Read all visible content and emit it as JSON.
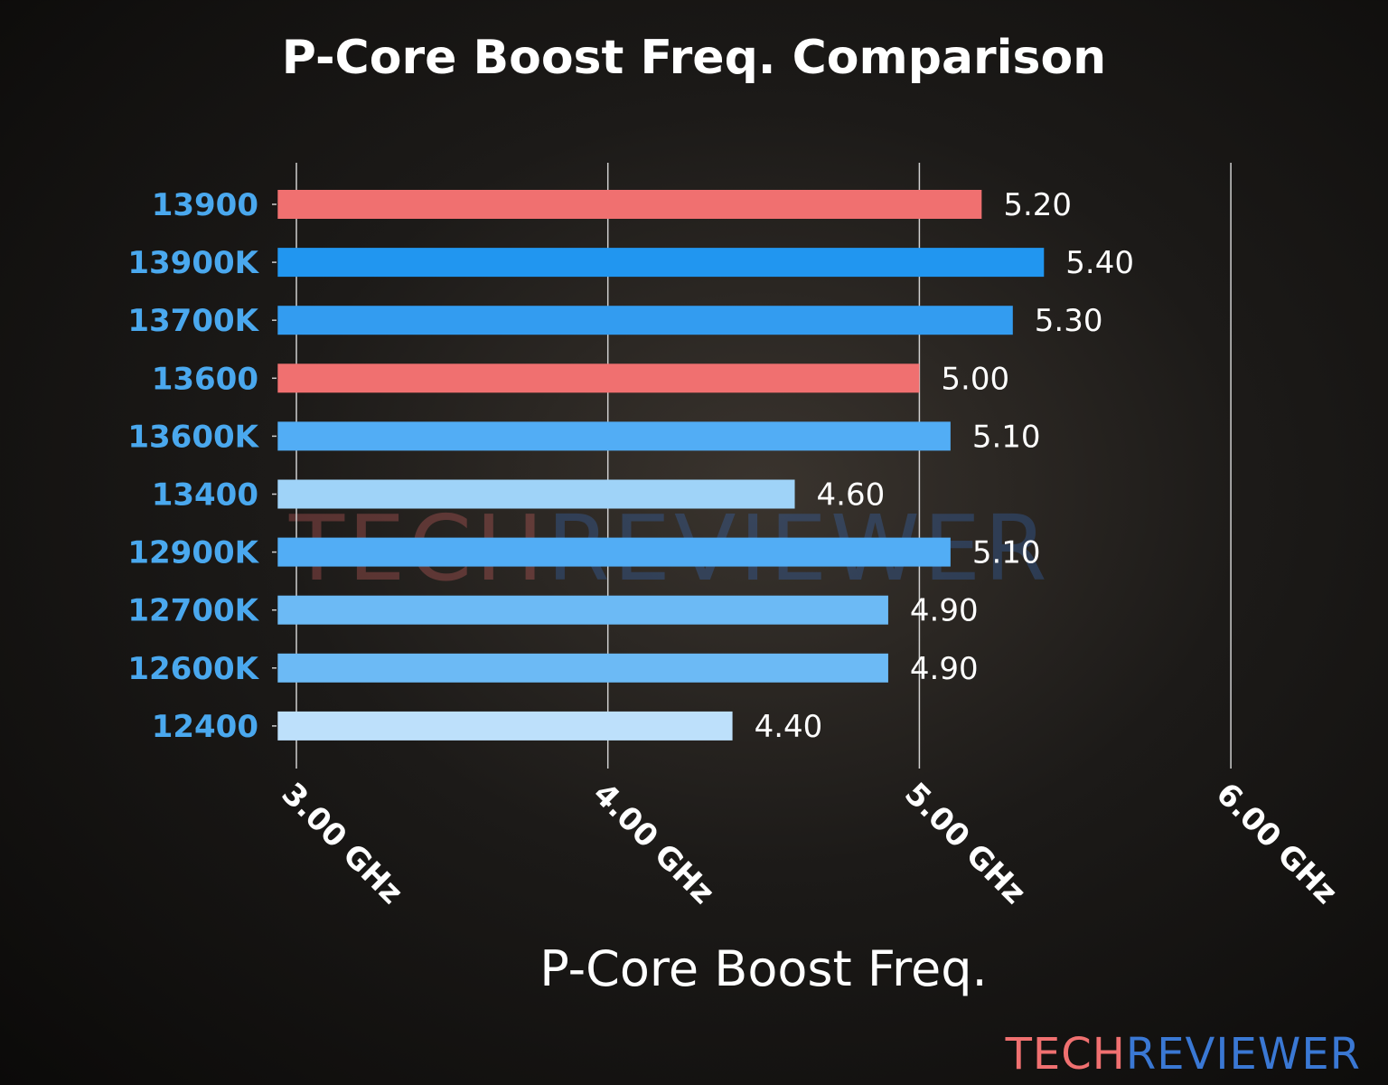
{
  "chart_data": {
    "type": "bar",
    "orientation": "horizontal",
    "title": "P-Core Boost Freq. Comparison",
    "xlabel": "P-Core Boost Freq.",
    "ylabel": "",
    "categories": [
      "13900",
      "13900K",
      "13700K",
      "13600",
      "13600K",
      "13400",
      "12900K",
      "12700K",
      "12600K",
      "12400"
    ],
    "values": [
      5.2,
      5.4,
      5.3,
      5.0,
      5.1,
      4.6,
      5.1,
      4.9,
      4.9,
      4.4
    ],
    "data_labels": [
      "5.20",
      "5.40",
      "5.30",
      "5.00",
      "5.10",
      "4.60",
      "5.10",
      "4.90",
      "4.90",
      "4.40"
    ],
    "bar_colors": [
      "#f07070",
      "#2196f0",
      "#339cf0",
      "#f07070",
      "#52adf5",
      "#9fd3f8",
      "#52adf5",
      "#6cbaf5",
      "#6cbaf5",
      "#bde0fb"
    ],
    "xlim": [
      2.94,
      6.0
    ],
    "xticks": [
      3,
      4,
      5,
      6
    ],
    "xtick_labels": [
      "3.00 GHz",
      "4.00 GHz",
      "5.00 GHz",
      "6.00 GHz"
    ],
    "grid": "vertical",
    "category_label_color": "#4aa8ee"
  },
  "watermark": {
    "part1": "TECH",
    "part2": "REVIEWER"
  },
  "logo": {
    "part1": "TECH",
    "part2": "REVIEWER"
  }
}
